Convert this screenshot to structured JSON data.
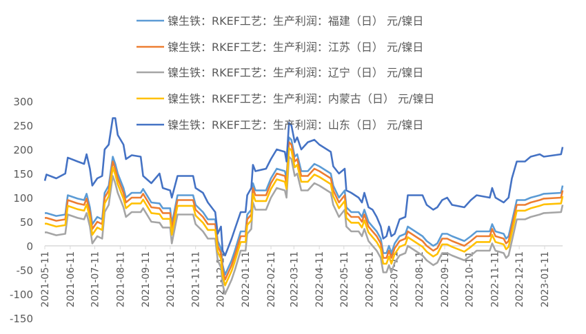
{
  "chart_data": {
    "type": "line",
    "title": "",
    "xlabel": "",
    "ylabel": "",
    "ylim": [
      -150,
      300
    ],
    "yticks": [
      300,
      250,
      200,
      150,
      100,
      50,
      0,
      -50,
      -100,
      -150
    ],
    "xticks": [
      "2021-05-11",
      "2021-06-11",
      "2021-07-11",
      "2021-08-11",
      "2021-09-11",
      "2021-10-11",
      "2021-11-11",
      "2021-12-11",
      "2022-01-11",
      "2022-02-11",
      "2022-03-11",
      "2022-04-11",
      "2022-05-11",
      "2022-06-11",
      "2022-07-11",
      "2022-08-11",
      "2022-09-11",
      "2022-10-11",
      "2022-11-11",
      "2022-12-11",
      "2023-01-11"
    ],
    "grid": false,
    "legend_position": "top-overlay",
    "x": [
      "2021-05-11",
      "2021-05-13",
      "2021-05-25",
      "2021-06-05",
      "2021-06-08",
      "2021-06-20",
      "2021-06-28",
      "2021-07-01",
      "2021-07-05",
      "2021-07-08",
      "2021-07-14",
      "2021-07-20",
      "2021-07-23",
      "2021-07-28",
      "2021-08-02",
      "2021-08-05",
      "2021-08-08",
      "2021-08-15",
      "2021-08-18",
      "2021-08-25",
      "2021-09-05",
      "2021-09-08",
      "2021-09-18",
      "2021-09-28",
      "2021-10-02",
      "2021-10-11",
      "2021-10-13",
      "2021-10-20",
      "2021-11-08",
      "2021-11-11",
      "2021-11-20",
      "2021-11-26",
      "2021-12-05",
      "2021-12-08",
      "2021-12-12",
      "2021-12-14",
      "2021-12-17",
      "2021-12-25",
      "2021-12-29",
      "2022-01-05",
      "2022-01-11",
      "2022-01-13",
      "2022-01-18",
      "2022-01-20",
      "2022-01-23",
      "2022-02-05",
      "2022-02-11",
      "2022-02-18",
      "2022-02-28",
      "2022-03-02",
      "2022-03-05",
      "2022-03-08",
      "2022-03-12",
      "2022-03-15",
      "2022-03-20",
      "2022-03-28",
      "2022-04-05",
      "2022-04-11",
      "2022-04-25",
      "2022-04-28",
      "2022-05-05",
      "2022-05-12",
      "2022-05-14",
      "2022-05-20",
      "2022-05-29",
      "2022-06-02",
      "2022-06-05",
      "2022-06-10",
      "2022-06-15",
      "2022-06-20",
      "2022-06-25",
      "2022-06-28",
      "2022-07-02",
      "2022-07-05",
      "2022-07-08",
      "2022-07-12",
      "2022-07-18",
      "2022-07-25",
      "2022-07-28",
      "2022-08-15",
      "2022-08-20",
      "2022-08-28",
      "2022-09-02",
      "2022-09-08",
      "2022-09-14",
      "2022-09-20",
      "2022-10-05",
      "2022-10-13",
      "2022-10-20",
      "2022-11-05",
      "2022-11-08",
      "2022-11-12",
      "2022-11-22",
      "2022-11-25",
      "2022-11-28",
      "2022-12-02",
      "2022-12-08",
      "2022-12-18",
      "2022-12-25",
      "2023-01-05",
      "2023-01-10",
      "2023-01-31",
      "2023-02-02"
    ],
    "series": [
      {
        "name": "镍生铁：RKEF工艺：生产利润：福建（日） 元/镍日",
        "color": "#5B9BD5",
        "values": [
          68,
          68,
          62,
          65,
          105,
          98,
          95,
          108,
          80,
          45,
          60,
          55,
          110,
          125,
          185,
          170,
          150,
          120,
          100,
          110,
          110,
          118,
          90,
          88,
          78,
          78,
          45,
          105,
          105,
          85,
          70,
          55,
          55,
          10,
          -5,
          -40,
          -60,
          -30,
          -10,
          30,
          30,
          65,
          75,
          130,
          115,
          115,
          140,
          160,
          155,
          140,
          225,
          220,
          185,
          190,
          155,
          155,
          170,
          165,
          150,
          125,
          100,
          115,
          80,
          70,
          70,
          60,
          75,
          50,
          40,
          30,
          15,
          -15,
          -15,
          0,
          -15,
          5,
          20,
          25,
          40,
          20,
          10,
          0,
          5,
          25,
          25,
          20,
          10,
          20,
          30,
          30,
          45,
          30,
          25,
          15,
          20,
          50,
          95,
          95,
          100,
          105,
          108,
          110,
          125
        ]
      },
      {
        "name": "镍生铁：RKEF工艺：生产利润：江苏（日） 元/镍日",
        "color": "#ED7D31",
        "values": [
          58,
          58,
          52,
          55,
          95,
          88,
          85,
          98,
          70,
          35,
          50,
          45,
          100,
          115,
          175,
          160,
          140,
          110,
          90,
          100,
          100,
          108,
          80,
          78,
          68,
          68,
          35,
          95,
          95,
          75,
          60,
          45,
          45,
          0,
          -15,
          -50,
          -70,
          -40,
          -20,
          20,
          20,
          55,
          65,
          120,
          105,
          105,
          130,
          150,
          145,
          130,
          215,
          210,
          175,
          180,
          145,
          145,
          160,
          155,
          140,
          115,
          90,
          105,
          70,
          60,
          60,
          50,
          65,
          40,
          30,
          20,
          5,
          -25,
          -25,
          -10,
          -25,
          -5,
          10,
          15,
          30,
          10,
          0,
          -10,
          -5,
          15,
          15,
          10,
          0,
          10,
          20,
          20,
          35,
          20,
          15,
          5,
          10,
          40,
          85,
          85,
          90,
          95,
          98,
          100,
          115
        ]
      },
      {
        "name": "镍生铁：RKEF工艺：生产利润：辽宁（日） 元/镍日",
        "color": "#A5A5A5",
        "values": [
          28,
          28,
          22,
          25,
          65,
          58,
          55,
          68,
          40,
          5,
          20,
          15,
          70,
          85,
          145,
          130,
          110,
          80,
          60,
          70,
          70,
          78,
          50,
          48,
          38,
          38,
          5,
          65,
          65,
          45,
          30,
          15,
          15,
          -30,
          -45,
          -80,
          -100,
          -70,
          -50,
          -10,
          -10,
          25,
          35,
          90,
          75,
          75,
          100,
          120,
          115,
          100,
          185,
          180,
          145,
          150,
          115,
          115,
          130,
          125,
          110,
          85,
          60,
          75,
          40,
          30,
          30,
          20,
          35,
          10,
          0,
          -10,
          -25,
          -55,
          -55,
          -40,
          -55,
          -35,
          -20,
          -15,
          0,
          -20,
          -30,
          -40,
          -35,
          -15,
          -15,
          -20,
          -30,
          -20,
          -10,
          -10,
          5,
          -10,
          -15,
          -25,
          -20,
          10,
          55,
          55,
          60,
          65,
          68,
          70,
          85
        ]
      },
      {
        "name": "镍生铁：RKEF工艺：生产利润：内蒙古（日） 元/镍日",
        "color": "#FFC000",
        "values": [
          46,
          46,
          40,
          43,
          83,
          76,
          73,
          86,
          58,
          23,
          38,
          33,
          88,
          103,
          163,
          148,
          128,
          98,
          78,
          88,
          88,
          96,
          68,
          66,
          56,
          56,
          23,
          83,
          83,
          63,
          48,
          33,
          33,
          -12,
          -27,
          -62,
          -82,
          -52,
          -32,
          8,
          8,
          43,
          53,
          108,
          93,
          93,
          118,
          138,
          133,
          118,
          203,
          198,
          163,
          168,
          133,
          133,
          148,
          143,
          128,
          103,
          78,
          93,
          58,
          48,
          48,
          38,
          53,
          28,
          18,
          8,
          -7,
          -37,
          -37,
          -22,
          -37,
          -17,
          -2,
          3,
          18,
          -2,
          -12,
          -22,
          -17,
          3,
          3,
          -2,
          -12,
          -2,
          8,
          8,
          23,
          8,
          3,
          -7,
          -2,
          28,
          73,
          73,
          78,
          83,
          86,
          88,
          103
        ]
      },
      {
        "name": "镍生铁：RKEF工艺：生产利润：山东（日） 元/镍日",
        "color": "#4472C4",
        "values": [
          135,
          148,
          140,
          150,
          183,
          175,
          170,
          190,
          160,
          125,
          140,
          145,
          200,
          210,
          265,
          265,
          230,
          210,
          180,
          188,
          185,
          145,
          130,
          150,
          120,
          115,
          100,
          145,
          145,
          120,
          110,
          90,
          70,
          25,
          40,
          -10,
          -20,
          15,
          35,
          70,
          70,
          105,
          120,
          168,
          155,
          160,
          180,
          200,
          195,
          175,
          255,
          250,
          215,
          225,
          200,
          215,
          220,
          210,
          195,
          165,
          150,
          160,
          115,
          110,
          100,
          90,
          110,
          80,
          75,
          60,
          40,
          15,
          20,
          40,
          20,
          25,
          55,
          60,
          105,
          105,
          85,
          75,
          80,
          95,
          100,
          85,
          80,
          95,
          105,
          100,
          120,
          100,
          90,
          95,
          100,
          140,
          175,
          175,
          185,
          190,
          185,
          190,
          205
        ]
      }
    ]
  }
}
